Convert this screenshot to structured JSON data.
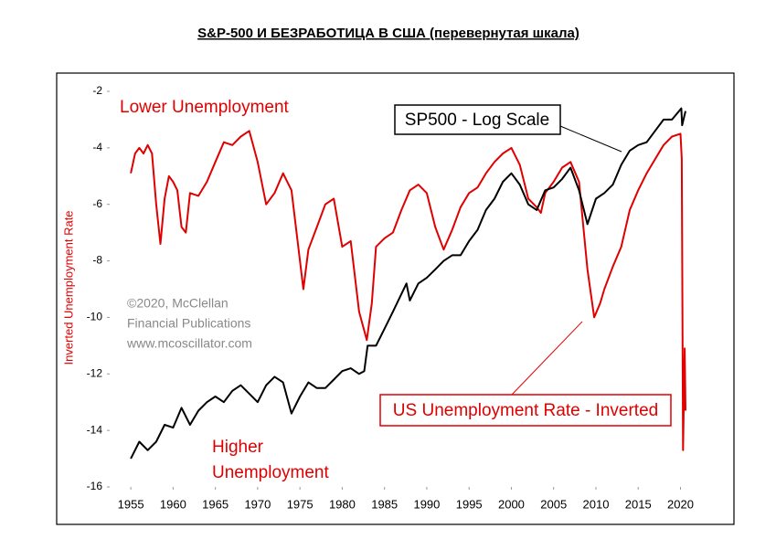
{
  "chart_data": {
    "type": "line",
    "title": "S&P-500 И БЕЗРАБОТИЦА В США (перевернутая шкала)",
    "y_label": "Inverted Unemployment Rate",
    "annotations": {
      "lower": "Lower Unemployment",
      "higher": [
        "Higher",
        "Unemployment"
      ],
      "sp500_box": "SP500 - Log Scale",
      "unemp_box": "US Unemployment Rate - Inverted",
      "watermark": [
        "©2020, McClellan",
        "Financial Publications",
        "www.mcoscillator.com"
      ]
    },
    "xlim": [
      1952.5,
      2022
    ],
    "xticks": [
      1955,
      1960,
      1965,
      1970,
      1975,
      1980,
      1985,
      1990,
      1995,
      2000,
      2005,
      2010,
      2015,
      2020
    ],
    "ylim": [
      -16,
      -2
    ],
    "yticks": [
      -2,
      -4,
      -6,
      -8,
      -10,
      -12,
      -14,
      -16
    ],
    "series": [
      {
        "name": "US Unemployment Rate - Inverted",
        "color": "#e00000",
        "x": [
          1955,
          1955.5,
          1956,
          1956.5,
          1957,
          1957.5,
          1958,
          1958.5,
          1959,
          1959.5,
          1960,
          1960.5,
          1961,
          1961.5,
          1962,
          1963,
          1964,
          1965,
          1966,
          1967,
          1968,
          1969,
          1970,
          1971,
          1972,
          1973,
          1974,
          1975.4,
          1976,
          1977,
          1978,
          1979,
          1980,
          1981,
          1982,
          1982.9,
          1983.5,
          1984,
          1985,
          1986,
          1987,
          1988,
          1989,
          1990,
          1991,
          1992,
          1993,
          1994,
          1995,
          1996,
          1997,
          1998,
          1999,
          2000,
          2001,
          2002,
          2003,
          2003.5,
          2004,
          2005,
          2006,
          2007,
          2008,
          2009,
          2009.8,
          2010.5,
          2011,
          2012,
          2013,
          2014,
          2015,
          2016,
          2017,
          2018,
          2019,
          2020,
          2020.15,
          2020.3,
          2020.5,
          2020.6
        ],
        "values": [
          -4.9,
          -4.2,
          -4.0,
          -4.2,
          -3.9,
          -4.2,
          -6.0,
          -7.4,
          -5.8,
          -5.0,
          -5.2,
          -5.5,
          -6.8,
          -7.0,
          -5.6,
          -5.7,
          -5.2,
          -4.5,
          -3.8,
          -3.9,
          -3.6,
          -3.4,
          -4.5,
          -6.0,
          -5.6,
          -4.9,
          -5.5,
          -9.0,
          -7.6,
          -6.8,
          -6.0,
          -5.8,
          -7.5,
          -7.3,
          -9.8,
          -10.8,
          -9.5,
          -7.5,
          -7.2,
          -7.0,
          -6.2,
          -5.5,
          -5.3,
          -5.6,
          -6.8,
          -7.6,
          -6.9,
          -6.1,
          -5.6,
          -5.4,
          -4.9,
          -4.5,
          -4.2,
          -4.0,
          -4.6,
          -5.8,
          -6.1,
          -6.3,
          -5.6,
          -5.2,
          -4.7,
          -4.5,
          -5.2,
          -8.3,
          -10.0,
          -9.5,
          -9.0,
          -8.2,
          -7.5,
          -6.2,
          -5.5,
          -4.9,
          -4.4,
          -3.9,
          -3.6,
          -3.5,
          -4.4,
          -14.7,
          -11.1,
          -13.3
        ]
      },
      {
        "name": "SP500 - Log Scale",
        "color": "#000000",
        "x": [
          1955,
          1956,
          1957,
          1958,
          1959,
          1960,
          1961,
          1962,
          1963,
          1964,
          1965,
          1966,
          1967,
          1968,
          1969,
          1970,
          1971,
          1972,
          1973,
          1974,
          1975,
          1976,
          1977,
          1978,
          1979,
          1980,
          1981,
          1982,
          1982.6,
          1983,
          1984,
          1985,
          1986,
          1987.6,
          1988,
          1989,
          1990,
          1991,
          1992,
          1993,
          1994,
          1995,
          1996,
          1997,
          1998,
          1999,
          2000,
          2001,
          2002,
          2003,
          2004,
          2005,
          2006,
          2007,
          2008,
          2009,
          2010,
          2011,
          2012,
          2013,
          2014,
          2015,
          2016,
          2017,
          2018,
          2019,
          2020.1,
          2020.2,
          2020.6
        ],
        "values": [
          -15.0,
          -14.4,
          -14.7,
          -14.4,
          -13.8,
          -13.9,
          -13.2,
          -13.8,
          -13.3,
          -13.0,
          -12.8,
          -13.0,
          -12.6,
          -12.4,
          -12.7,
          -13.0,
          -12.4,
          -12.1,
          -12.3,
          -13.4,
          -12.8,
          -12.3,
          -12.5,
          -12.5,
          -12.2,
          -11.9,
          -11.8,
          -12.0,
          -11.9,
          -11.0,
          -11.0,
          -10.4,
          -9.8,
          -8.8,
          -9.4,
          -8.8,
          -8.6,
          -8.3,
          -8.0,
          -7.8,
          -7.8,
          -7.3,
          -6.9,
          -6.2,
          -5.8,
          -5.2,
          -4.9,
          -5.3,
          -6.0,
          -6.2,
          -5.5,
          -5.4,
          -5.1,
          -4.7,
          -5.5,
          -6.7,
          -5.8,
          -5.6,
          -5.3,
          -4.6,
          -4.1,
          -3.9,
          -3.8,
          -3.4,
          -3.0,
          -3.0,
          -2.6,
          -3.2,
          -2.7
        ]
      }
    ]
  }
}
